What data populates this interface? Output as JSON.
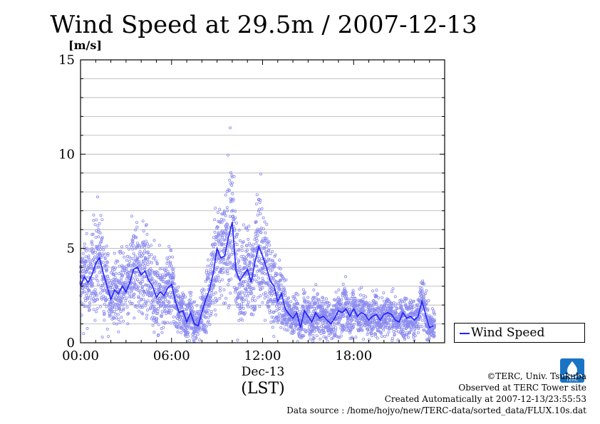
{
  "chart_data": {
    "type": "scatter",
    "title": "Wind Speed at 29.5m / 2007-12-13",
    "ylabel": "[m/s]",
    "xlabel": "(LST)",
    "x_date_label": "Dec-13",
    "ylim": [
      0,
      15
    ],
    "xlim": [
      0,
      24
    ],
    "yticks": [
      "0",
      "5",
      "10",
      "15"
    ],
    "xticks": [
      "00:00",
      "06:00",
      "12:00",
      "18:00"
    ],
    "grid": true,
    "legend_position": "outside-right",
    "series": [
      {
        "name": "Wind Speed",
        "color": "#2222ff",
        "x": [
          0.0,
          0.25,
          0.5,
          0.75,
          1.0,
          1.25,
          1.5,
          1.75,
          2.0,
          2.25,
          2.5,
          2.75,
          3.0,
          3.25,
          3.5,
          3.75,
          4.0,
          4.25,
          4.5,
          4.75,
          5.0,
          5.25,
          5.5,
          5.75,
          6.0,
          6.25,
          6.5,
          6.75,
          7.0,
          7.25,
          7.5,
          7.75,
          8.0,
          8.25,
          8.5,
          8.75,
          9.0,
          9.25,
          9.5,
          9.75,
          10.0,
          10.25,
          10.5,
          10.75,
          11.0,
          11.25,
          11.5,
          11.75,
          12.0,
          12.25,
          12.5,
          12.75,
          13.0,
          13.25,
          13.5,
          13.75,
          14.0,
          14.25,
          14.5,
          14.75,
          15.0,
          15.25,
          15.5,
          15.75,
          16.0,
          16.25,
          16.5,
          16.75,
          17.0,
          17.25,
          17.5,
          17.75,
          18.0,
          18.25,
          18.5,
          18.75,
          19.0,
          19.25,
          19.5,
          19.75,
          20.0,
          20.25,
          20.5,
          20.75,
          21.0,
          21.25,
          21.5,
          21.75,
          22.0,
          22.25,
          22.5,
          22.75,
          23.0,
          23.25
        ],
        "y": [
          3.0,
          3.5,
          3.2,
          3.6,
          4.2,
          4.5,
          3.7,
          3.0,
          2.3,
          2.8,
          2.6,
          3.0,
          2.7,
          3.2,
          3.9,
          4.0,
          3.6,
          3.8,
          3.3,
          3.0,
          2.4,
          2.7,
          2.5,
          2.9,
          3.1,
          2.2,
          1.6,
          1.7,
          1.1,
          1.6,
          1.0,
          0.9,
          1.6,
          2.3,
          2.8,
          3.7,
          5.0,
          4.5,
          4.6,
          5.6,
          6.4,
          3.8,
          3.3,
          3.6,
          3.9,
          3.2,
          4.3,
          5.1,
          4.6,
          4.0,
          3.3,
          3.0,
          2.2,
          2.6,
          1.8,
          1.5,
          1.3,
          1.6,
          0.8,
          1.7,
          1.4,
          1.1,
          1.6,
          1.3,
          1.4,
          1.2,
          1.0,
          1.3,
          1.7,
          1.6,
          1.8,
          1.4,
          1.8,
          1.4,
          1.6,
          1.5,
          1.2,
          1.4,
          1.5,
          1.2,
          1.5,
          1.6,
          1.5,
          1.2,
          1.1,
          1.6,
          1.3,
          1.4,
          1.2,
          1.4,
          2.2,
          1.5,
          0.8,
          0.9
        ]
      }
    ]
  },
  "legend": {
    "label": "Wind Speed"
  },
  "footer": {
    "copyright": "©TERC, Univ. Tsukuba",
    "observed": "Observed at TERC Tower site",
    "created": "Created Automatically at 2007-12-13/23:55:53",
    "source": "Data source : /home/hojyo/new/TERC-data/sorted_data/FLUX.10s.dat"
  },
  "logo": {
    "text": "TERC",
    "color": "#1a74c4"
  }
}
